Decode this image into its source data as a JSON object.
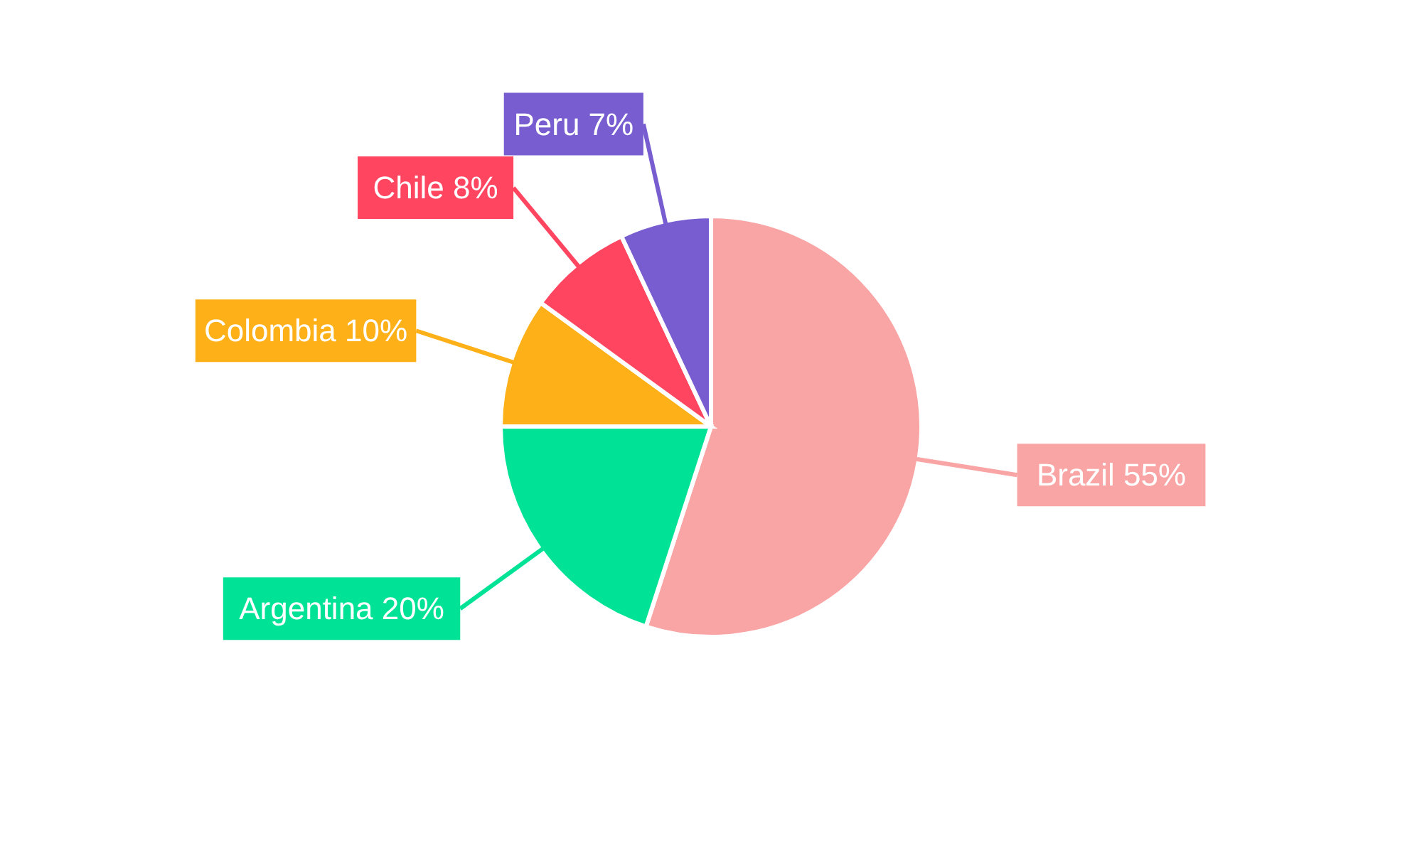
{
  "chart_data": {
    "type": "pie",
    "categories": [
      "Brazil",
      "Argentina",
      "Colombia",
      "Chile",
      "Peru"
    ],
    "values": [
      55,
      20,
      10,
      8,
      7
    ],
    "value_labels": [
      "55%",
      "20%",
      "10%",
      "8%",
      "7%"
    ],
    "colors": [
      "#f9a5a5",
      "#00e396",
      "#feb019",
      "#ff4560",
      "#775dd0"
    ]
  }
}
